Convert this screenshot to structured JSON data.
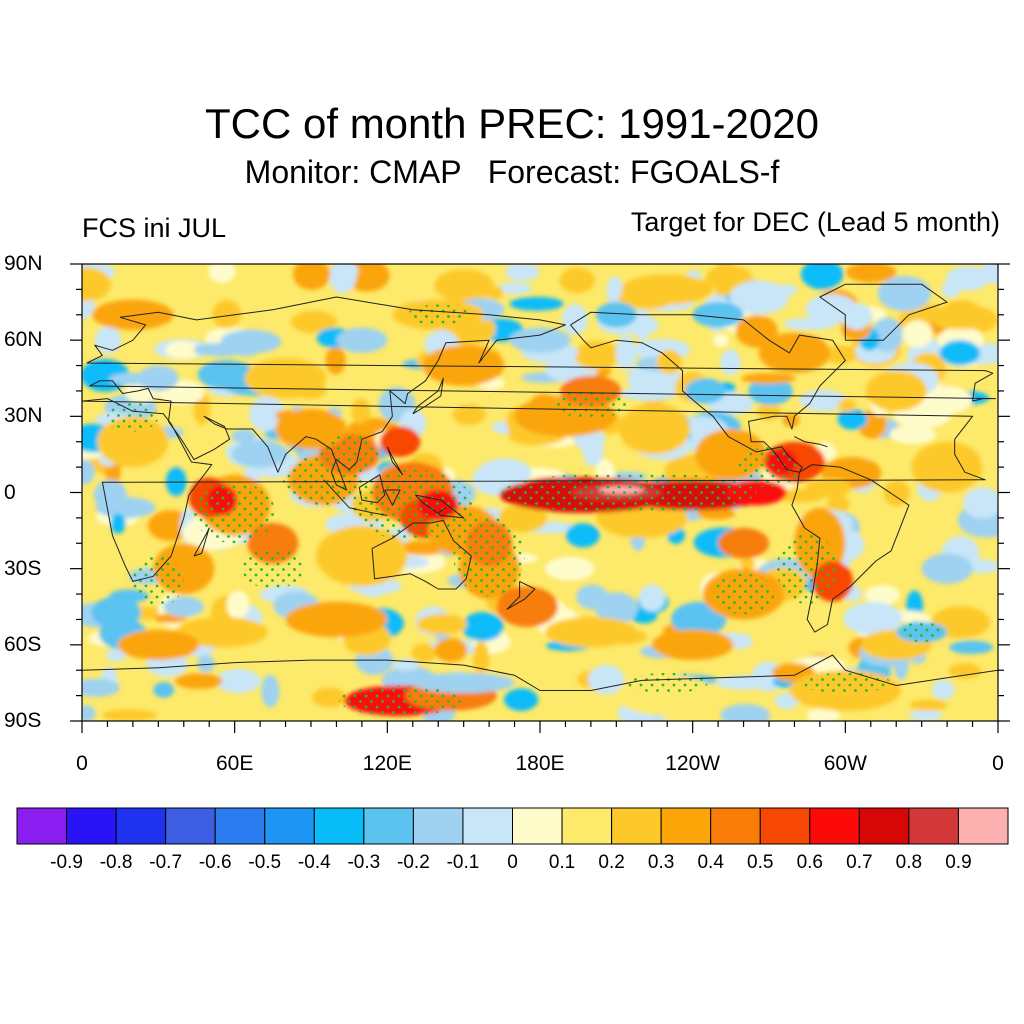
{
  "title": "TCC of month PREC: 1991-2020",
  "subtitle": "Monitor: CMAP   Forecast: FGOALS-f",
  "left_label": "FCS ini JUL",
  "right_label": "Target for DEC (Lead 5 month)",
  "map": {
    "projection": "equirectangular",
    "lon_range": [
      0,
      360
    ],
    "lat_range": [
      -90,
      90
    ],
    "lat_ticks": [
      "90N",
      "60N",
      "30N",
      "0",
      "30S",
      "60S",
      "90S"
    ],
    "lon_ticks": [
      "0",
      "60E",
      "120E",
      "180E",
      "120W",
      "60W",
      "0"
    ],
    "field": "TCC of month PREC",
    "stippling_color": "#2db52d",
    "coastline_color": "#222222"
  },
  "colorbar": {
    "colors": [
      "#8a1ef0",
      "#2a14f7",
      "#1e32ef",
      "#3d5ee0",
      "#2d7cef",
      "#1e96f5",
      "#08bcf8",
      "#5ac3f0",
      "#9ed2f0",
      "#c8e6f8",
      "#fffccc",
      "#fde96a",
      "#fdc92a",
      "#fba508",
      "#f77d08",
      "#f74705",
      "#fc0a0a",
      "#d80707",
      "#d43737",
      "#fdb0b0"
    ],
    "labels": [
      "-0.9",
      "-0.8",
      "-0.7",
      "-0.6",
      "-0.5",
      "-0.4",
      "-0.3",
      "-0.2",
      "-0.1",
      "0",
      "0.1",
      "0.2",
      "0.3",
      "0.4",
      "0.5",
      "0.6",
      "0.7",
      "0.8",
      "0.9"
    ]
  }
}
